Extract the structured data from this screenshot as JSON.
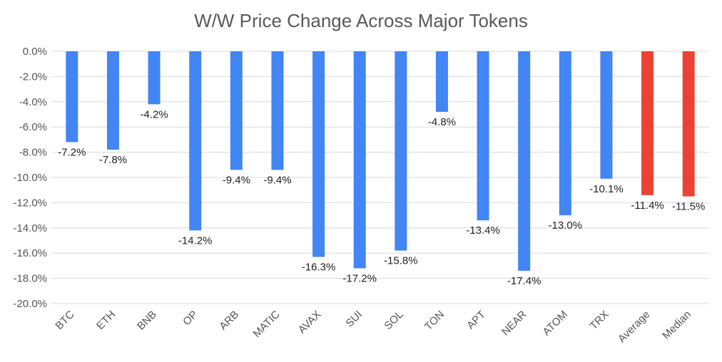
{
  "chart_data": {
    "type": "bar",
    "title": "W/W Price Change Across Major Tokens",
    "xlabel": "",
    "ylabel": "",
    "categories": [
      "BTC",
      "ETH",
      "BNB",
      "OP",
      "ARB",
      "MATIC",
      "AVAX",
      "SUI",
      "SOL",
      "TON",
      "APT",
      "NEAR",
      "ATOM",
      "TRX",
      "Average",
      "Median"
    ],
    "series": [
      {
        "values": [
          -7.2,
          -7.8,
          -4.2,
          -14.2,
          -9.4,
          -9.4,
          -16.3,
          -17.2,
          -15.8,
          -4.8,
          -13.4,
          -17.4,
          -13.0,
          -10.1,
          -11.4,
          -11.5
        ]
      }
    ],
    "data_labels": [
      "-7.2%",
      "-7.8%",
      "-4.2%",
      "-14.2%",
      "-9.4%",
      "-9.4%",
      "-16.3%",
      "-17.2%",
      "-15.8%",
      "-4.8%",
      "-13.4%",
      "-17.4%",
      "-13.0%",
      "-10.1%",
      "-11.4%",
      "-11.5%"
    ],
    "bar_colors": [
      "#4285F4",
      "#4285F4",
      "#4285F4",
      "#4285F4",
      "#4285F4",
      "#4285F4",
      "#4285F4",
      "#4285F4",
      "#4285F4",
      "#4285F4",
      "#4285F4",
      "#4285F4",
      "#4285F4",
      "#4285F4",
      "#EA4335",
      "#EA4335"
    ],
    "ylim": [
      -20,
      0
    ],
    "yticks": [
      0,
      -2,
      -4,
      -6,
      -8,
      -10,
      -12,
      -14,
      -16,
      -18,
      -20
    ],
    "ytick_labels": [
      "0.0%",
      "-2.0%",
      "-4.0%",
      "-6.0%",
      "-8.0%",
      "-10.0%",
      "-12.0%",
      "-14.0%",
      "-16.0%",
      "-18.0%",
      "-20.0%"
    ],
    "grid": true,
    "legend": "none",
    "colors": {
      "primary_bar": "#4285F4",
      "summary_bar": "#EA4335",
      "grid": "#d9d9d9",
      "title": "#595959"
    }
  }
}
